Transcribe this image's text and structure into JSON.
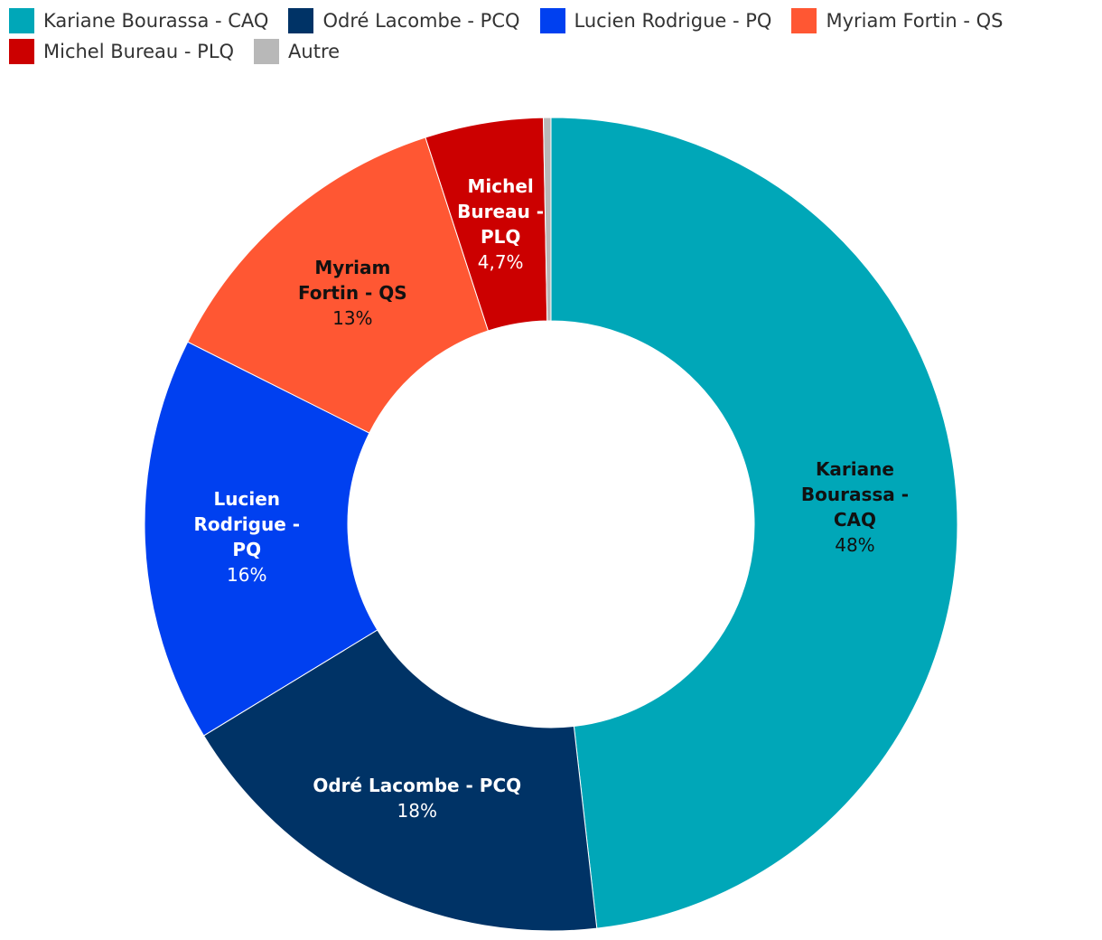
{
  "chart_data": {
    "type": "donut",
    "series": [
      {
        "name": "Kariane Bourassa - CAQ",
        "color": "#00a7b8"
      },
      {
        "name": "Odré Lacombe - PCQ",
        "color": "#003366"
      },
      {
        "name": "Lucien Rodrigue - PQ",
        "color": "#0040f0"
      },
      {
        "name": "Myriam Fortin - QS",
        "color": "#ff5733"
      },
      {
        "name": "Michel Bureau - PLQ",
        "color": "#cc0000"
      },
      {
        "name": "Autre",
        "color": "#b8b8b8"
      }
    ],
    "values": [
      48.2,
      18.1,
      16.1,
      12.6,
      4.7,
      0.3
    ],
    "value_labels": [
      "48%",
      "18%",
      "16%",
      "13%",
      "4,7%",
      null
    ]
  }
}
